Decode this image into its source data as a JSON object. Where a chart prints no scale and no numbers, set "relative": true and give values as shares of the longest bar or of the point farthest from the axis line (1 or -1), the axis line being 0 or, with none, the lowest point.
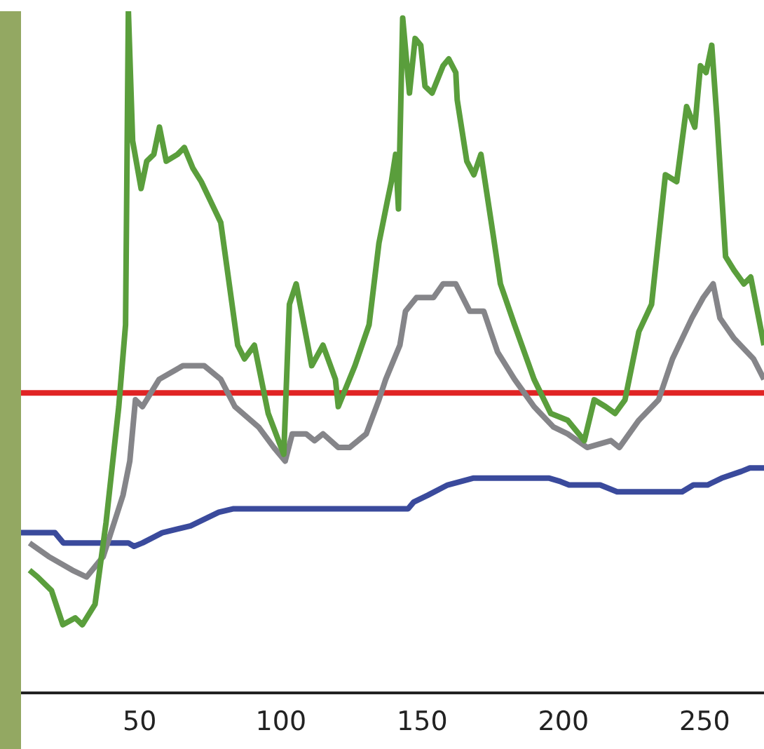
{
  "chart_data": {
    "type": "line",
    "relative": true,
    "xlim": [
      8,
      271
    ],
    "xticks": [
      50,
      100,
      150,
      200,
      250
    ],
    "tick_labels": "x",
    "marker": "none",
    "line_style": "solid",
    "series": [
      {
        "color": "#5a9e3c",
        "x": [
          11,
          13.9,
          18.8,
          22.8,
          27.2,
          29.7,
          34.2,
          38.1,
          42.6,
          45.0,
          46.0,
          47.5,
          50.5,
          52.5,
          55.0,
          57.0,
          59.4,
          63.4,
          65.8,
          68.8,
          71.8,
          78.7,
          84.7,
          87.1,
          90.6,
          95.5,
          101.0,
          103.0,
          105.4,
          110.9,
          114.9,
          119.3,
          120.3,
          126.2,
          131.2,
          134.7,
          137.6,
          139.1,
          140.6,
          141.6,
          143.1,
          145.5,
          147.5,
          149.5,
          151.0,
          153.5,
          157.4,
          159.4,
          161.9,
          162.4,
          165.8,
          168.3,
          170.8,
          175.2,
          177.7,
          182.7,
          189.6,
          195.5,
          201.5,
          207.4,
          210.9,
          214.9,
          218.3,
          221.8,
          226.7,
          231.2,
          236.1,
          240.1,
          243.6,
          246.5,
          248.5,
          250.5,
          252.5,
          254.4,
          257.4,
          260.4,
          263.9,
          266.3,
          271.0
        ],
        "values": [
          0.18,
          0.17,
          0.15,
          0.1,
          0.11,
          0.1,
          0.13,
          0.25,
          0.42,
          0.54,
          1,
          0.81,
          0.74,
          0.78,
          0.79,
          0.83,
          0.78,
          0.79,
          0.8,
          0.77,
          0.75,
          0.69,
          0.51,
          0.49,
          0.51,
          0.41,
          0.35,
          0.57,
          0.6,
          0.48,
          0.51,
          0.46,
          0.42,
          0.48,
          0.54,
          0.66,
          0.72,
          0.75,
          0.79,
          0.71,
          0.99,
          0.88,
          0.96,
          0.95,
          0.89,
          0.88,
          0.92,
          0.93,
          0.91,
          0.87,
          0.78,
          0.76,
          0.79,
          0.67,
          0.6,
          0.54,
          0.46,
          0.41,
          0.4,
          0.37,
          0.43,
          0.42,
          0.41,
          0.43,
          0.53,
          0.57,
          0.76,
          0.75,
          0.86,
          0.83,
          0.92,
          0.91,
          0.95,
          0.84,
          0.64,
          0.62,
          0.6,
          0.61,
          0.51
        ]
      },
      {
        "color": "#858589",
        "x": [
          11,
          17.8,
          26.2,
          31.2,
          37.1,
          44.1,
          46.5,
          48.5,
          51.0,
          56.9,
          65.3,
          72.8,
          78.7,
          83.7,
          92.1,
          97.5,
          101.5,
          104.0,
          108.9,
          111.9,
          114.9,
          120.3,
          124.3,
          130.2,
          134.7,
          137.1,
          142.1,
          144.1,
          148.0,
          154.0,
          157.4,
          161.9,
          166.8,
          171.8,
          176.7,
          182.7,
          189.6,
          196.5,
          201.5,
          208.4,
          216.8,
          219.8,
          226.7,
          233.7,
          238.6,
          245.5,
          249.5,
          253.0,
          255.4,
          260.4,
          267.3,
          271.0
        ],
        "values": [
          0.22,
          0.2,
          0.18,
          0.17,
          0.2,
          0.29,
          0.34,
          0.43,
          0.42,
          0.46,
          0.48,
          0.48,
          0.46,
          0.42,
          0.39,
          0.36,
          0.34,
          0.38,
          0.38,
          0.37,
          0.38,
          0.36,
          0.36,
          0.38,
          0.43,
          0.46,
          0.51,
          0.56,
          0.58,
          0.58,
          0.6,
          0.6,
          0.56,
          0.56,
          0.5,
          0.46,
          0.42,
          0.39,
          0.38,
          0.36,
          0.37,
          0.36,
          0.4,
          0.43,
          0.49,
          0.55,
          0.58,
          0.6,
          0.55,
          0.52,
          0.49,
          0.46
        ]
      },
      {
        "color": "#e02424",
        "x": [
          8,
          271
        ],
        "values": [
          0.44,
          0.44
        ]
      },
      {
        "color": "#3a4a9c",
        "x": [
          8,
          20,
          23,
          46,
          48,
          51,
          58,
          68,
          73,
          78,
          83,
          145,
          147,
          152,
          159,
          168,
          195,
          199,
          202,
          213,
          219,
          242,
          246,
          251,
          256,
          263,
          266,
          271
        ],
        "values": [
          0.235,
          0.235,
          0.22,
          0.22,
          0.215,
          0.22,
          0.235,
          0.245,
          0.255,
          0.265,
          0.27,
          0.27,
          0.28,
          0.29,
          0.305,
          0.315,
          0.315,
          0.31,
          0.305,
          0.305,
          0.295,
          0.295,
          0.305,
          0.305,
          0.315,
          0.325,
          0.33,
          0.33
        ]
      }
    ]
  }
}
